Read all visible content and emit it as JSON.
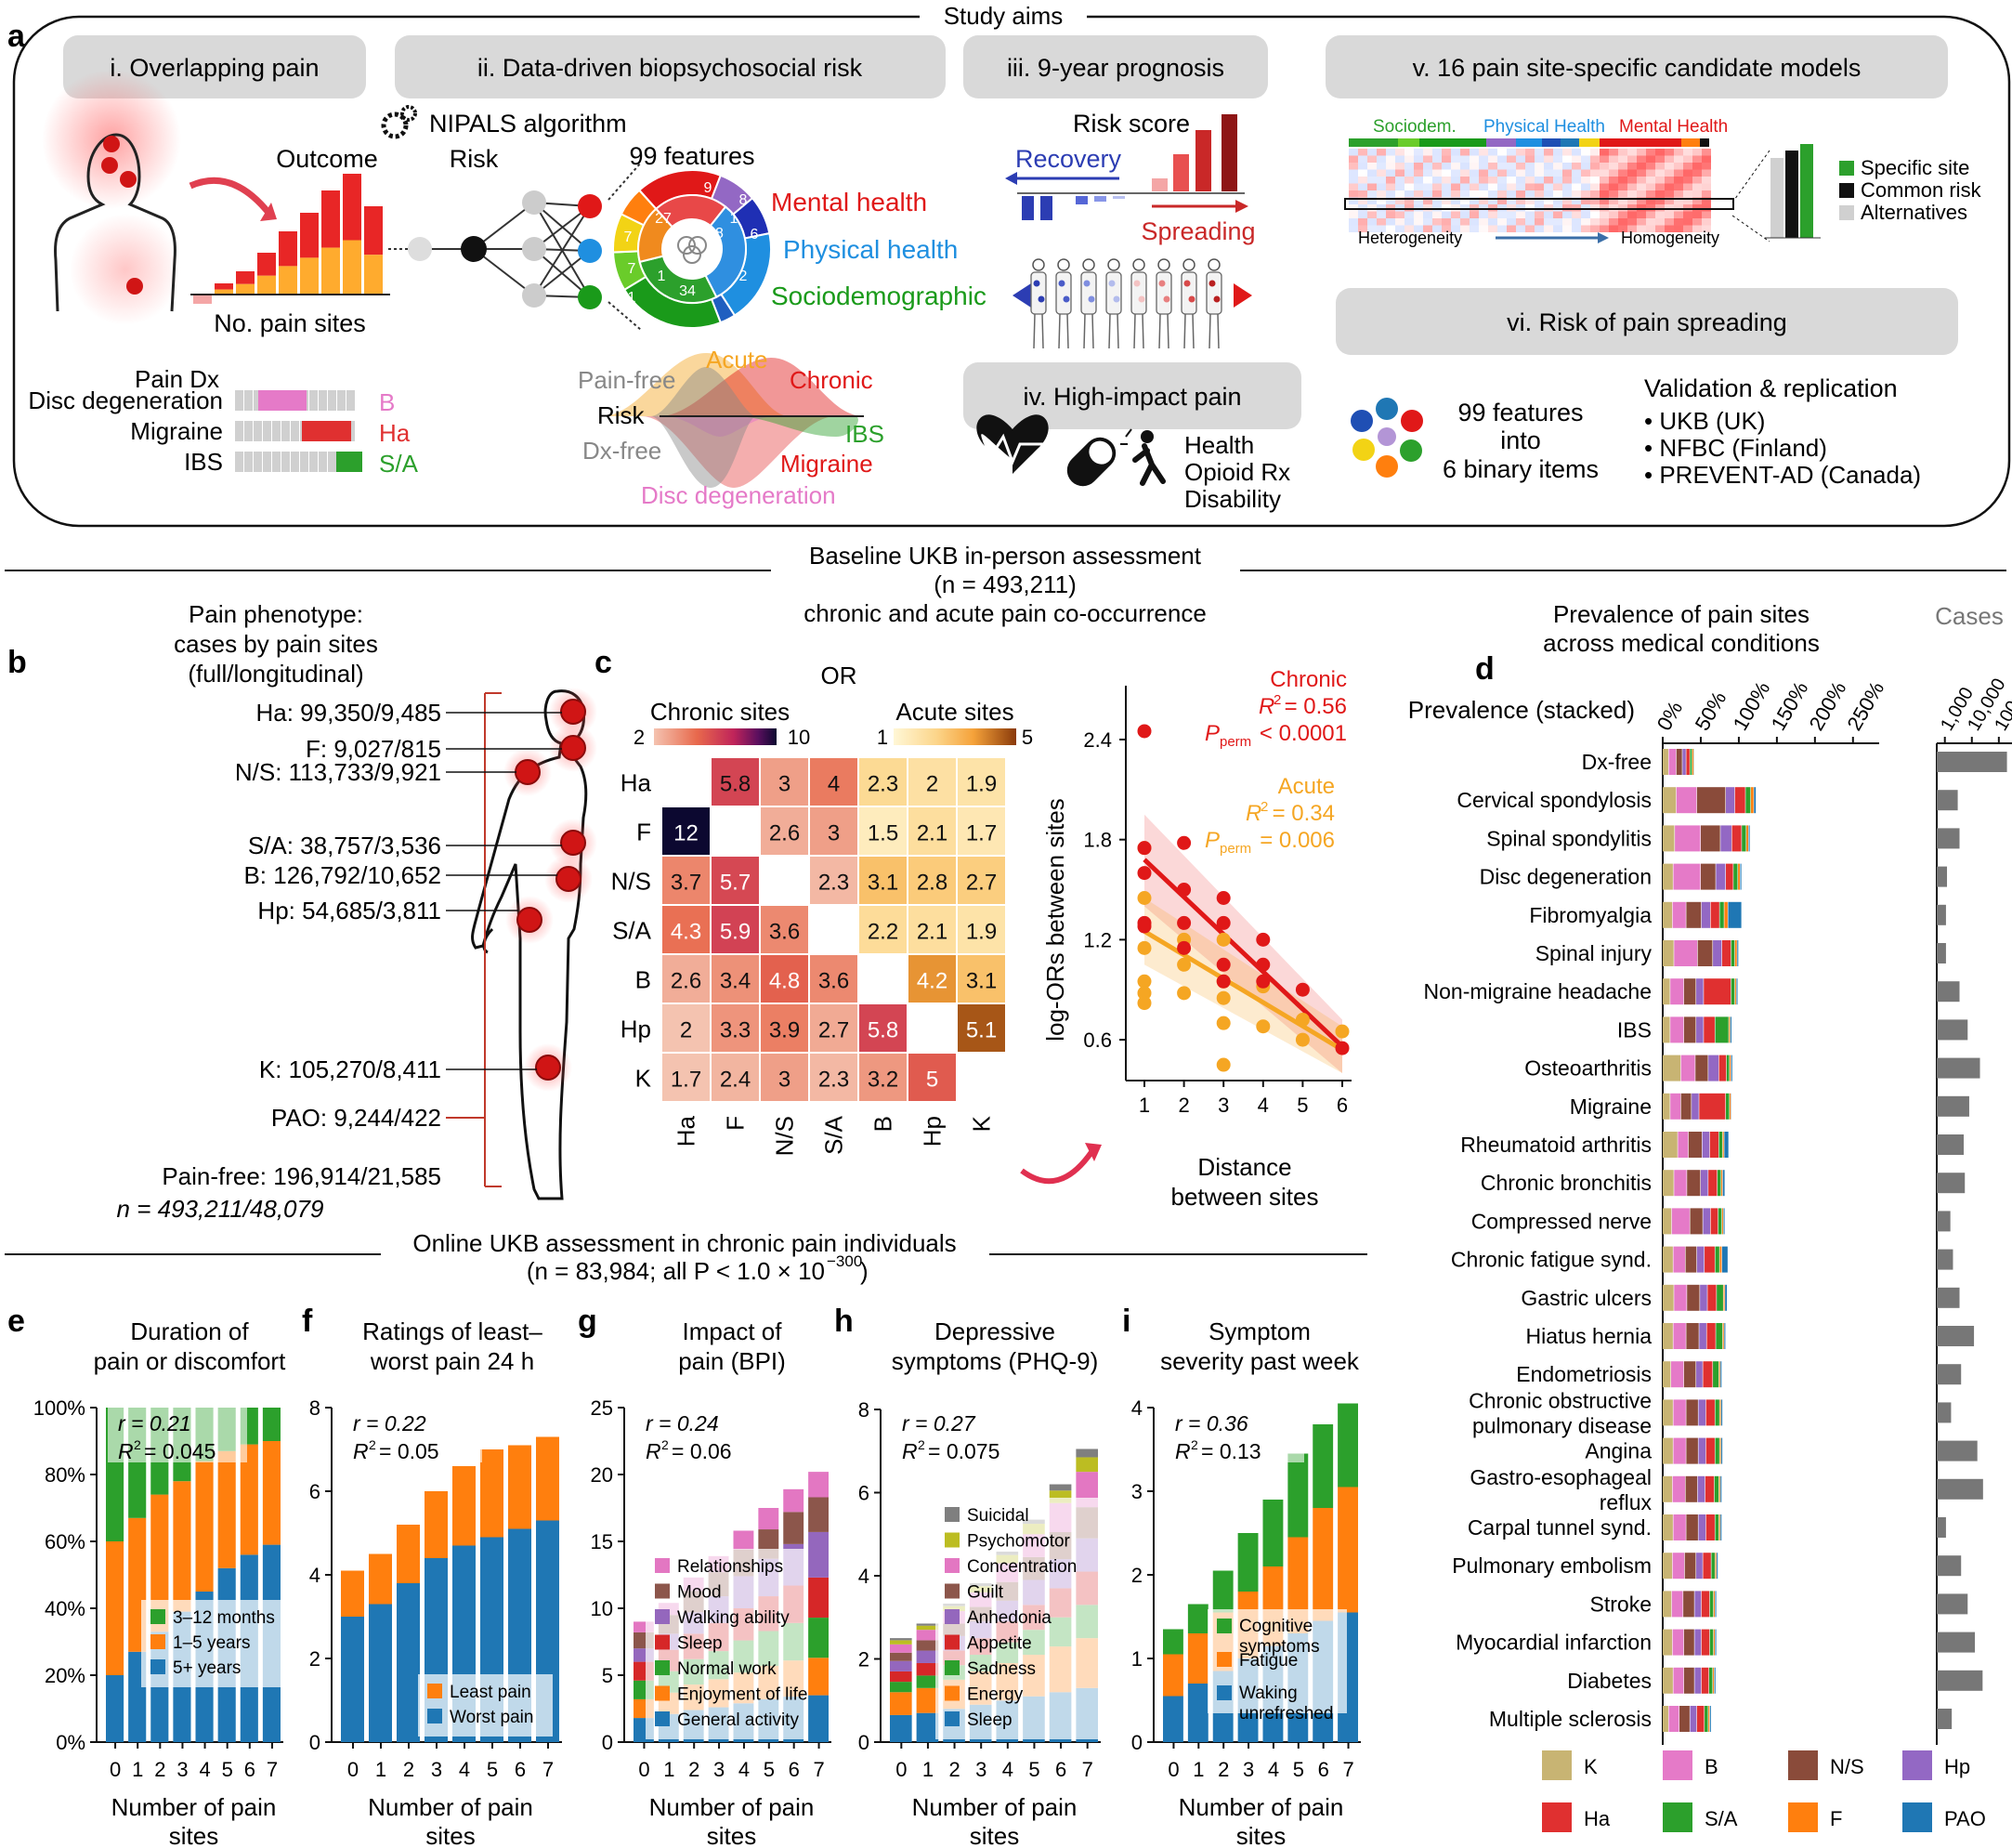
{
  "colors": {
    "K": "#c8b473",
    "B": "#e57ac8",
    "NS": "#8a4b3a",
    "Hp": "#9368c4",
    "Ha": "#e03030",
    "SA": "#2ca02c",
    "F": "#ff7f0e",
    "PAO": "#1f77b4",
    "grey_bar": "#777777"
  },
  "panel_a": {
    "letter": "a",
    "study_aims": "Study aims",
    "aims": {
      "i": "i. Overlapping pain",
      "ii": "ii. Data-driven biopsychosocial risk",
      "iii": "iii. 9-year prognosis",
      "iv": "iv. High-impact pain",
      "v": "v. 16 pain site-specific candidate models",
      "vi": "vi. Risk of pain spreading"
    },
    "nipals": "NIPALS algorithm",
    "outcome": "Outcome",
    "risk": "Risk",
    "no_pain_sites": "No. pain sites",
    "features_99": "99 features",
    "mental_health": "Mental health",
    "physical_health": "Physical health",
    "sociodemographic": "Sociodemographic",
    "donut_numbers": [
      "9",
      "8",
      "1",
      "27",
      "7",
      "38",
      "6",
      "7",
      "1",
      "34",
      "1",
      "2"
    ],
    "pain_dx": "Pain Dx",
    "dx_rows": [
      {
        "label": "Disc degeneration",
        "code": "B"
      },
      {
        "label": "Migraine",
        "code": "Ha"
      },
      {
        "label": "IBS",
        "code": "S/A"
      }
    ],
    "curves": {
      "pain_free": "Pain-free",
      "acute": "Acute",
      "chronic": "Chronic",
      "risk": "Risk",
      "dx_free": "Dx-free",
      "ibs": "IBS",
      "migraine": "Migraine",
      "disc_degeneration": "Disc degeneration"
    },
    "risk_score": "Risk score",
    "recovery": "Recovery",
    "spreading": "Spreading",
    "highimpact_items": [
      "Health",
      "Opioid Rx",
      "Disability"
    ],
    "heatmap_groups": [
      "Sociodem.",
      "Physical Health",
      "Mental Health"
    ],
    "heterogeneity": "Heterogeneity",
    "homogeneity": "Homogeneity",
    "legend_v": [
      "Specific site",
      "Common risk",
      "Alternatives"
    ],
    "binary_text": [
      "99 features",
      "into",
      "6 binary items"
    ],
    "validation_title": "Validation & replication",
    "validation_items": [
      "• UKB (UK)",
      "• NFBC (Finland)",
      "• PREVENT-AD (Canada)"
    ]
  },
  "baseline_header": [
    "Baseline UKB in-person assessment",
    "(n = 493,211)",
    "chronic and acute pain co-occurrence"
  ],
  "panel_b": {
    "letter": "b",
    "title": [
      "Pain phenotype:",
      "cases by pain sites",
      "(full/longitudinal)"
    ],
    "sites": [
      "Ha: 99,350/9,485",
      "F: 9,027/815",
      "N/S: 113,733/9,921",
      "S/A: 38,757/3,536",
      "B: 126,792/10,652",
      "Hp: 54,685/3,811",
      "K: 105,270/8,411",
      "PAO: 9,244/422",
      "Pain-free: 196,914/21,585"
    ],
    "total": "n = 493,211/48,079"
  },
  "panel_c": {
    "letter": "c",
    "or_title": "OR",
    "chronic_label": "Chronic sites",
    "acute_label": "Acute sites",
    "chronic_scale": [
      "2",
      "10"
    ],
    "acute_scale": [
      "1",
      "5"
    ],
    "labels": [
      "Ha",
      "F",
      "N/S",
      "S/A",
      "B",
      "Hp",
      "K"
    ],
    "matrix": [
      [
        null,
        "5.8",
        "3",
        "4",
        "2.3",
        "2",
        "1.9"
      ],
      [
        "12",
        null,
        "2.6",
        "3",
        "1.5",
        "2.1",
        "1.7"
      ],
      [
        "3.7",
        "5.7",
        null,
        "2.3",
        "3.1",
        "2.8",
        "2.7"
      ],
      [
        "4.3",
        "5.9",
        "3.6",
        null,
        "2.2",
        "2.1",
        "1.9"
      ],
      [
        "2.6",
        "3.4",
        "4.8",
        "3.6",
        null,
        "4.2",
        "3.1"
      ],
      [
        "2",
        "3.3",
        "3.9",
        "2.7",
        "5.8",
        null,
        "5.1"
      ],
      [
        "1.7",
        "2.4",
        "3",
        "2.3",
        "3.2",
        "5",
        null
      ]
    ],
    "scatter": {
      "ylabel": "log-ORs between sites",
      "xlabel": [
        "Distance",
        "between sites"
      ],
      "yticks": [
        "2.4",
        "1.8",
        "1.2",
        "0.6"
      ],
      "xticks": [
        "1",
        "2",
        "3",
        "4",
        "5",
        "6"
      ],
      "chronic": {
        "name": "Chronic",
        "r2": "= 0.56",
        "p": "< 0.0001"
      },
      "acute": {
        "name": "Acute",
        "r2": "= 0.34",
        "p": "= 0.006"
      }
    }
  },
  "online_header": [
    "Online UKB assessment in chronic pain individuals",
    "(n = 83,984; all P < 1.0 × 10"
  ],
  "online_exp": "−300",
  "online_close": ")",
  "chart_data": [
    {
      "type": "bar",
      "id": "e",
      "title": [
        "Duration of",
        "pain or discomfort"
      ],
      "xlabel": "Number of pain sites",
      "categories": [
        "0",
        "1",
        "2",
        "3",
        "4",
        "5",
        "6",
        "7"
      ],
      "yticks": [
        "0%",
        "20%",
        "40%",
        "60%",
        "80%",
        "100%"
      ],
      "ylim": [
        0,
        100
      ],
      "stat": {
        "r": "r = 0.21",
        "r2": "= 0.045"
      },
      "series": [
        {
          "name": "5+ years",
          "values": [
            20,
            27,
            33,
            39,
            45,
            52,
            56,
            59
          ]
        },
        {
          "name": "1–5 years",
          "values": [
            40,
            40,
            41,
            39,
            39,
            35,
            33,
            31
          ]
        },
        {
          "name": "3–12 months",
          "values": [
            40,
            33,
            26,
            22,
            16,
            13,
            11,
            10
          ]
        }
      ]
    },
    {
      "type": "bar",
      "id": "f",
      "title": [
        "Ratings of least–",
        "worst pain 24 h"
      ],
      "xlabel": "Number of pain sites",
      "categories": [
        "0",
        "1",
        "2",
        "3",
        "4",
        "5",
        "6",
        "7"
      ],
      "yticks": [
        "0",
        "2",
        "4",
        "6",
        "8"
      ],
      "ylim": [
        0,
        8
      ],
      "stat": {
        "r": "r = 0.22",
        "r2": "= 0.05"
      },
      "series": [
        {
          "name": "Worst pain",
          "values": [
            3.0,
            3.3,
            3.8,
            4.4,
            4.7,
            4.9,
            5.1,
            5.3
          ]
        },
        {
          "name": "Least pain",
          "values": [
            1.1,
            1.2,
            1.4,
            1.6,
            1.9,
            2.1,
            2.0,
            2.0
          ]
        }
      ]
    },
    {
      "type": "bar",
      "id": "g",
      "title": [
        "Impact of",
        "pain (BPI)"
      ],
      "xlabel": "Number of pain sites",
      "categories": [
        "0",
        "1",
        "2",
        "3",
        "4",
        "5",
        "6",
        "7"
      ],
      "yticks": [
        "0",
        "5",
        "10",
        "15",
        "20",
        "25"
      ],
      "ylim": [
        0,
        25
      ],
      "stat": {
        "r": "r = 0.24",
        "r2": "= 0.06"
      },
      "series": [
        {
          "name": "General activity",
          "values": [
            1.8,
            2.1,
            2.4,
            2.6,
            2.9,
            3.2,
            3.4,
            3.5
          ]
        },
        {
          "name": "Enjoyment of life",
          "values": [
            1.4,
            1.6,
            1.9,
            2.1,
            2.3,
            2.5,
            2.7,
            2.8
          ]
        },
        {
          "name": "Normal work",
          "values": [
            1.4,
            1.6,
            1.9,
            2.1,
            2.4,
            2.6,
            2.8,
            3.0
          ]
        },
        {
          "name": "Sleep",
          "values": [
            1.4,
            1.6,
            1.9,
            2.1,
            2.4,
            2.6,
            2.8,
            3.0
          ]
        },
        {
          "name": "Walking ability",
          "values": [
            1.0,
            1.2,
            1.6,
            2.0,
            2.4,
            2.8,
            3.1,
            3.4
          ]
        },
        {
          "name": "Mood",
          "values": [
            1.2,
            1.4,
            1.6,
            1.8,
            2.0,
            2.2,
            2.4,
            2.6
          ]
        },
        {
          "name": "Relationships",
          "values": [
            0.8,
            0.9,
            1.0,
            1.2,
            1.4,
            1.6,
            1.7,
            1.9
          ]
        }
      ]
    },
    {
      "type": "bar",
      "id": "h",
      "title": [
        "Depressive",
        "symptoms (PHQ-9)"
      ],
      "xlabel": "Number of pain sites",
      "categories": [
        "0",
        "1",
        "2",
        "3",
        "4",
        "5",
        "6",
        "7"
      ],
      "yticks": [
        "0",
        "2",
        "4",
        "6",
        "8"
      ],
      "ylim": [
        0,
        8
      ],
      "stat": {
        "r": "r = 0.27",
        "r2": "= 0.075"
      },
      "series": [
        {
          "name": "Sleep",
          "values": [
            0.65,
            0.7,
            0.8,
            0.9,
            1.0,
            1.1,
            1.2,
            1.3
          ]
        },
        {
          "name": "Energy",
          "values": [
            0.55,
            0.6,
            0.7,
            0.8,
            0.9,
            1.0,
            1.1,
            1.2
          ]
        },
        {
          "name": "Sadness",
          "values": [
            0.25,
            0.3,
            0.35,
            0.4,
            0.5,
            0.6,
            0.7,
            0.8
          ]
        },
        {
          "name": "Appetite",
          "values": [
            0.25,
            0.3,
            0.35,
            0.4,
            0.5,
            0.6,
            0.7,
            0.8
          ]
        },
        {
          "name": "Anhedonia",
          "values": [
            0.25,
            0.3,
            0.35,
            0.4,
            0.5,
            0.6,
            0.7,
            0.8
          ]
        },
        {
          "name": "Guilt",
          "values": [
            0.2,
            0.25,
            0.3,
            0.35,
            0.45,
            0.55,
            0.65,
            0.75
          ]
        },
        {
          "name": "Concentration",
          "values": [
            0.2,
            0.25,
            0.3,
            0.35,
            0.45,
            0.55,
            0.7,
            0.85
          ]
        },
        {
          "name": "Psychomotor",
          "values": [
            0.1,
            0.1,
            0.12,
            0.15,
            0.2,
            0.25,
            0.3,
            0.35
          ]
        },
        {
          "name": "Suicidal",
          "values": [
            0.05,
            0.05,
            0.06,
            0.07,
            0.08,
            0.1,
            0.15,
            0.2
          ]
        }
      ]
    },
    {
      "type": "bar",
      "id": "i",
      "title": [
        "Symptom",
        "severity past week"
      ],
      "xlabel": "Number of pain sites",
      "categories": [
        "0",
        "1",
        "2",
        "3",
        "4",
        "5",
        "6",
        "7"
      ],
      "yticks": [
        "0",
        "1",
        "2",
        "3",
        "4"
      ],
      "ylim": [
        0,
        4
      ],
      "stat": {
        "r": "r = 0.36",
        "r2": "= 0.13"
      },
      "series": [
        {
          "name": "Waking unrefreshed",
          "values": [
            0.55,
            0.7,
            0.85,
            1.0,
            1.15,
            1.3,
            1.45,
            1.55
          ]
        },
        {
          "name": "Fatigue",
          "values": [
            0.5,
            0.6,
            0.7,
            0.8,
            0.95,
            1.15,
            1.35,
            1.5
          ]
        },
        {
          "name": "Cognitive symptoms",
          "values": [
            0.3,
            0.35,
            0.5,
            0.7,
            0.8,
            1.0,
            1.0,
            1.0
          ]
        }
      ]
    },
    {
      "type": "bar",
      "id": "d",
      "orientation": "horizontal",
      "title": [
        "Prevalence of pain sites",
        "across medical conditions"
      ],
      "xlabel": "Prevalence (stacked)",
      "xticks": [
        "0%",
        "50%",
        "100%",
        "150%",
        "200%",
        "250%"
      ],
      "xlim": [
        0,
        260
      ],
      "series_order": [
        "K",
        "B",
        "NS",
        "Hp",
        "Ha",
        "SA",
        "F",
        "PAO"
      ],
      "series_names": [
        "K",
        "B",
        "N/S",
        "Hp",
        "Ha",
        "S/A",
        "F",
        "PAO"
      ],
      "cases_title": "Cases",
      "cases_ticks": [
        "1,000",
        "10,000",
        "100,000"
      ],
      "rows": [
        {
          "label": "Dx-free",
          "v": [
            8,
            10,
            8,
            5,
            5,
            3,
            2,
            1
          ],
          "cases": 200000
        },
        {
          "label": "Cervical spondylosis",
          "v": [
            18,
            27,
            38,
            12,
            14,
            7,
            4,
            3
          ],
          "cases": 3000
        },
        {
          "label": "Spinal spondylitis",
          "v": [
            16,
            34,
            26,
            15,
            13,
            6,
            3,
            2
          ],
          "cases": 3500
        },
        {
          "label": "Disc degeneration",
          "v": [
            14,
            36,
            20,
            13,
            10,
            6,
            3,
            2
          ],
          "cases": 1200
        },
        {
          "label": "Fibromyalgia",
          "v": [
            13,
            18,
            20,
            12,
            12,
            6,
            5,
            18
          ],
          "cases": 1100
        },
        {
          "label": "Spinal injury",
          "v": [
            15,
            31,
            20,
            12,
            12,
            5,
            3,
            2
          ],
          "cases": 1100
        },
        {
          "label": "Non-migraine headache",
          "v": [
            10,
            18,
            16,
            10,
            36,
            5,
            2,
            2
          ],
          "cases": 3500
        },
        {
          "label": "IBS",
          "v": [
            10,
            18,
            16,
            10,
            15,
            18,
            2,
            2
          ],
          "cases": 7000
        },
        {
          "label": "Osteoarthritis",
          "v": [
            24,
            19,
            17,
            14,
            10,
            4,
            2,
            2
          ],
          "cases": 20000
        },
        {
          "label": "Migraine",
          "v": [
            10,
            14,
            14,
            10,
            35,
            5,
            2,
            1
          ],
          "cases": 8000
        },
        {
          "label": "Rheumatoid arthritis",
          "v": [
            20,
            14,
            18,
            10,
            12,
            5,
            2,
            6
          ],
          "cases": 5000
        },
        {
          "label": "Chronic bronchitis",
          "v": [
            15,
            17,
            18,
            10,
            12,
            5,
            2,
            3
          ],
          "cases": 5500
        },
        {
          "label": "Compressed nerve",
          "v": [
            12,
            24,
            17,
            10,
            10,
            5,
            2,
            2
          ],
          "cases": 1600
        },
        {
          "label": "Chronic fatigue synd.",
          "v": [
            14,
            16,
            15,
            10,
            14,
            6,
            3,
            8
          ],
          "cases": 2000
        },
        {
          "label": "Gastric ulcers",
          "v": [
            15,
            17,
            17,
            10,
            12,
            9,
            2,
            3
          ],
          "cases": 3500
        },
        {
          "label": "Hiatus hernia",
          "v": [
            14,
            17,
            17,
            10,
            12,
            9,
            2,
            2
          ],
          "cases": 12000
        },
        {
          "label": "Endometriosis",
          "v": [
            11,
            17,
            16,
            9,
            13,
            8,
            2,
            2
          ],
          "cases": 4000
        },
        {
          "label": "Chronic obstructive pulmonary disease",
          "v": [
            14,
            17,
            16,
            10,
            12,
            6,
            2,
            2
          ],
          "cases": 1700
        },
        {
          "label": "Angina",
          "v": [
            14,
            17,
            16,
            10,
            12,
            6,
            2,
            2
          ],
          "cases": 16000
        },
        {
          "label": "Gastro-esophageal reflux",
          "v": [
            13,
            17,
            16,
            10,
            12,
            6,
            2,
            2
          ],
          "cases": 26000
        },
        {
          "label": "Carpal tunnel synd.",
          "v": [
            14,
            17,
            16,
            10,
            12,
            5,
            2,
            2
          ],
          "cases": 1100
        },
        {
          "label": "Pulmonary embolism",
          "v": [
            13,
            16,
            15,
            9,
            11,
            5,
            2,
            2
          ],
          "cases": 4000
        },
        {
          "label": "Stroke",
          "v": [
            12,
            15,
            15,
            9,
            11,
            5,
            2,
            2
          ],
          "cases": 7000
        },
        {
          "label": "Myocardial infarction",
          "v": [
            13,
            15,
            14,
            9,
            11,
            5,
            2,
            2
          ],
          "cases": 13000
        },
        {
          "label": "Diabetes",
          "v": [
            14,
            14,
            14,
            9,
            10,
            5,
            2,
            2
          ],
          "cases": 25000
        },
        {
          "label": "Multiple sclerosis",
          "v": [
            8,
            14,
            14,
            9,
            10,
            5,
            2,
            2
          ],
          "cases": 1800
        }
      ]
    }
  ]
}
